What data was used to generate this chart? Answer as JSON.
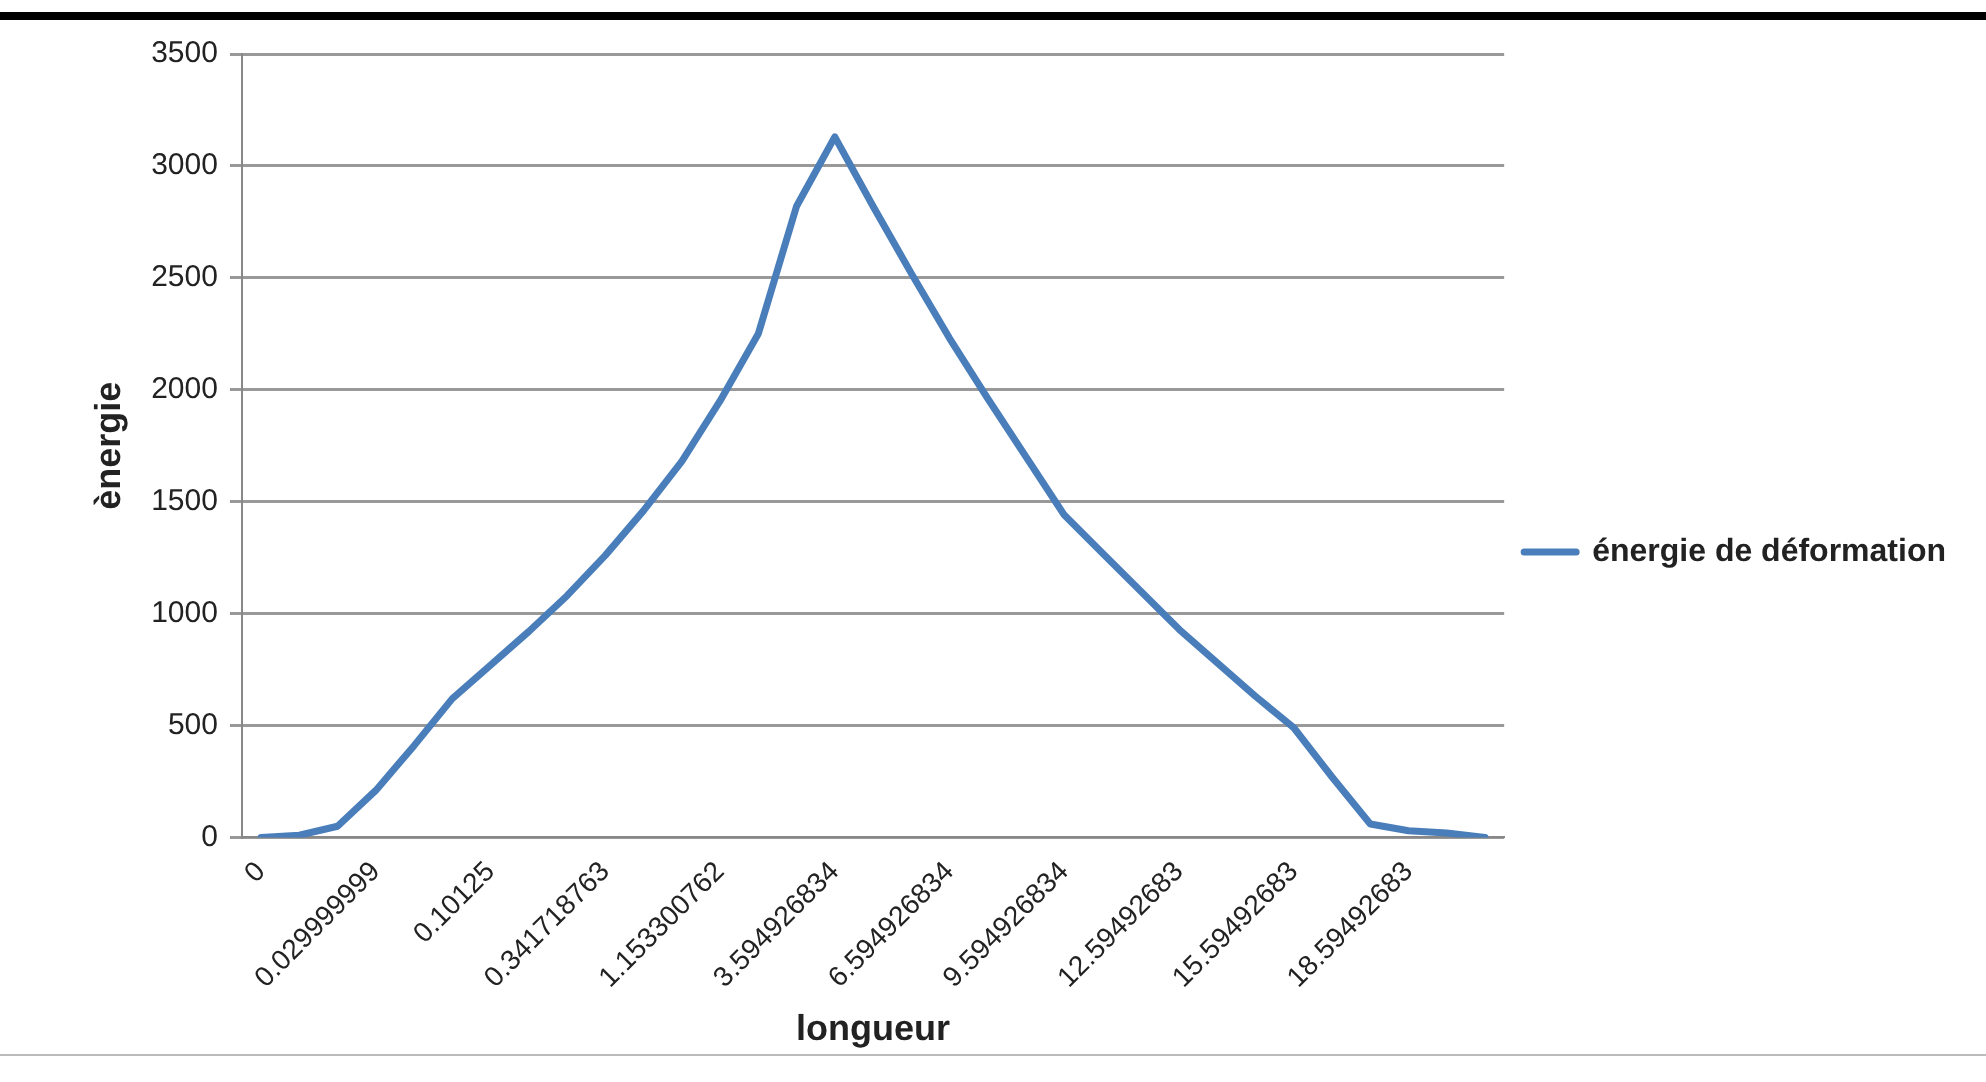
{
  "chart_data": {
    "type": "line",
    "xlabel": "longueur",
    "ylabel": "ènergie",
    "categories": [
      "0",
      null,
      null,
      "0.029999999",
      null,
      null,
      "0.10125",
      null,
      null,
      "0.341718763",
      null,
      null,
      "1.153300762",
      null,
      null,
      "3.594926834",
      null,
      null,
      "6.594926834",
      null,
      null,
      "9.594926834",
      null,
      null,
      "12.59492683",
      null,
      null,
      "15.59492683",
      null,
      null,
      "18.59492683",
      null,
      null
    ],
    "series": [
      {
        "name": "énergie de déformation",
        "color": "#4a7ebb",
        "values": [
          0,
          10,
          50,
          210,
          410,
          620,
          770,
          920,
          1080,
          1260,
          1460,
          1680,
          1950,
          2250,
          2820,
          3130,
          2820,
          2520,
          2230,
          1960,
          1700,
          1440,
          1270,
          1100,
          930,
          780,
          630,
          490,
          270,
          60,
          30,
          20,
          0
        ]
      }
    ],
    "ylim": [
      0,
      3500
    ],
    "yticks": [
      0,
      500,
      1000,
      1500,
      2000,
      2500,
      3000,
      3500
    ],
    "grid": "y",
    "legend": "right",
    "marker": "none",
    "line_style": "solid"
  }
}
